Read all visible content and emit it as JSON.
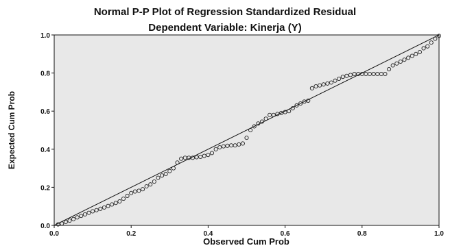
{
  "chart_data": {
    "type": "scatter",
    "title": "Normal P-P Plot of Regression Standardized Residual",
    "subtitle": "Dependent Variable: Kinerja (Y)",
    "xlabel": "Observed Cum Prob",
    "ylabel": "Expected Cum Prob",
    "xlim": [
      0.0,
      1.0
    ],
    "ylim": [
      0.0,
      1.0
    ],
    "xticks": [
      0.0,
      0.2,
      0.4,
      0.6,
      0.8,
      1.0
    ],
    "yticks": [
      0.0,
      0.2,
      0.4,
      0.6,
      0.8,
      1.0
    ],
    "xtick_labels": [
      "0.0",
      "0.2",
      "0.4",
      "0.6",
      "0.8",
      "1.0"
    ],
    "ytick_labels": [
      "0.0",
      "0.2",
      "0.4",
      "0.6",
      "0.8",
      "1.0"
    ],
    "grid": false,
    "reference_line": {
      "x": [
        0.0,
        1.0
      ],
      "y": [
        0.0,
        1.0
      ]
    },
    "colors": {
      "plot_background": "#e8e8e8",
      "marker": "#222222",
      "line": "#111111"
    },
    "points": [
      [
        0.01,
        0.005
      ],
      [
        0.02,
        0.01
      ],
      [
        0.03,
        0.018
      ],
      [
        0.04,
        0.025
      ],
      [
        0.05,
        0.033
      ],
      [
        0.06,
        0.042
      ],
      [
        0.07,
        0.05
      ],
      [
        0.08,
        0.058
      ],
      [
        0.09,
        0.066
      ],
      [
        0.1,
        0.074
      ],
      [
        0.11,
        0.08
      ],
      [
        0.12,
        0.087
      ],
      [
        0.13,
        0.094
      ],
      [
        0.14,
        0.102
      ],
      [
        0.15,
        0.11
      ],
      [
        0.16,
        0.118
      ],
      [
        0.17,
        0.126
      ],
      [
        0.18,
        0.14
      ],
      [
        0.19,
        0.155
      ],
      [
        0.2,
        0.17
      ],
      [
        0.21,
        0.178
      ],
      [
        0.22,
        0.182
      ],
      [
        0.23,
        0.19
      ],
      [
        0.24,
        0.205
      ],
      [
        0.25,
        0.215
      ],
      [
        0.26,
        0.23
      ],
      [
        0.27,
        0.25
      ],
      [
        0.28,
        0.262
      ],
      [
        0.29,
        0.27
      ],
      [
        0.3,
        0.285
      ],
      [
        0.31,
        0.3
      ],
      [
        0.32,
        0.33
      ],
      [
        0.33,
        0.35
      ],
      [
        0.34,
        0.355
      ],
      [
        0.35,
        0.355
      ],
      [
        0.36,
        0.355
      ],
      [
        0.37,
        0.358
      ],
      [
        0.38,
        0.36
      ],
      [
        0.39,
        0.365
      ],
      [
        0.4,
        0.37
      ],
      [
        0.41,
        0.38
      ],
      [
        0.42,
        0.4
      ],
      [
        0.43,
        0.41
      ],
      [
        0.44,
        0.415
      ],
      [
        0.45,
        0.418
      ],
      [
        0.46,
        0.42
      ],
      [
        0.47,
        0.42
      ],
      [
        0.48,
        0.425
      ],
      [
        0.49,
        0.43
      ],
      [
        0.5,
        0.46
      ],
      [
        0.51,
        0.5
      ],
      [
        0.52,
        0.52
      ],
      [
        0.53,
        0.535
      ],
      [
        0.54,
        0.545
      ],
      [
        0.55,
        0.56
      ],
      [
        0.56,
        0.58
      ],
      [
        0.57,
        0.58
      ],
      [
        0.58,
        0.585
      ],
      [
        0.59,
        0.59
      ],
      [
        0.6,
        0.595
      ],
      [
        0.61,
        0.6
      ],
      [
        0.62,
        0.615
      ],
      [
        0.63,
        0.63
      ],
      [
        0.64,
        0.64
      ],
      [
        0.65,
        0.65
      ],
      [
        0.66,
        0.655
      ],
      [
        0.67,
        0.72
      ],
      [
        0.68,
        0.73
      ],
      [
        0.69,
        0.735
      ],
      [
        0.7,
        0.74
      ],
      [
        0.71,
        0.745
      ],
      [
        0.72,
        0.75
      ],
      [
        0.73,
        0.76
      ],
      [
        0.74,
        0.77
      ],
      [
        0.75,
        0.78
      ],
      [
        0.76,
        0.785
      ],
      [
        0.77,
        0.79
      ],
      [
        0.78,
        0.795
      ],
      [
        0.79,
        0.795
      ],
      [
        0.8,
        0.795
      ],
      [
        0.81,
        0.795
      ],
      [
        0.82,
        0.795
      ],
      [
        0.83,
        0.795
      ],
      [
        0.84,
        0.795
      ],
      [
        0.85,
        0.795
      ],
      [
        0.86,
        0.795
      ],
      [
        0.87,
        0.82
      ],
      [
        0.88,
        0.84
      ],
      [
        0.89,
        0.85
      ],
      [
        0.9,
        0.86
      ],
      [
        0.91,
        0.87
      ],
      [
        0.92,
        0.88
      ],
      [
        0.93,
        0.89
      ],
      [
        0.94,
        0.9
      ],
      [
        0.95,
        0.91
      ],
      [
        0.96,
        0.93
      ],
      [
        0.97,
        0.94
      ],
      [
        0.98,
        0.96
      ],
      [
        0.99,
        0.98
      ],
      [
        1.0,
        0.995
      ]
    ]
  }
}
